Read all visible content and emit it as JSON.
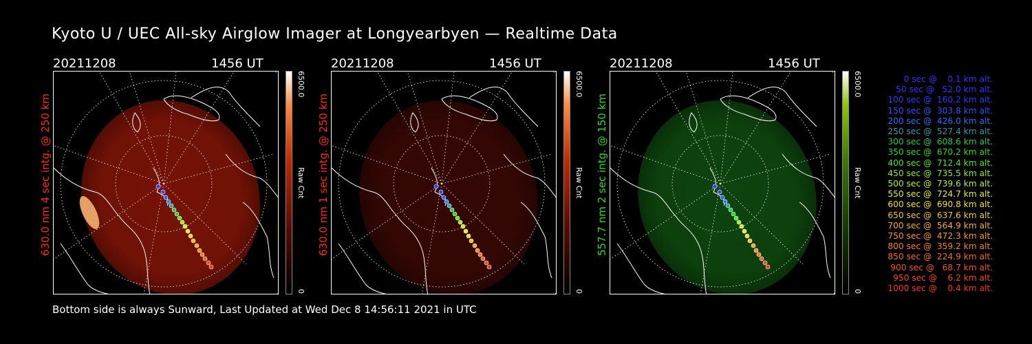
{
  "title": "Kyoto U / UEC All-sky Airglow Imager at Longyearbyen — Realtime Data",
  "footer": "Bottom side is always Sunward, Last Updated at Wed Dec  8 14:56:11 2021 in UTC",
  "panels": [
    {
      "date": "20211208",
      "time": "1456 UT",
      "side_label": "630.0 nm 4 sec intg. @ 250 km",
      "label_color": "#ff2a10",
      "cbar_max": "6500.0",
      "cbar_unit": "Raw Cnt",
      "cbar_min": "0",
      "glow_color": "#8a1608",
      "glow_opacity": 0.85
    },
    {
      "date": "20211208",
      "time": "1456 UT",
      "side_label": "630.0 nm 1 sec intg. @ 250 km",
      "label_color": "#ff2a10",
      "cbar_max": "6500.0",
      "cbar_unit": "Raw Cnt",
      "cbar_min": "0",
      "glow_color": "#3a0804",
      "glow_opacity": 0.9
    },
    {
      "date": "20211208",
      "time": "1456 UT",
      "side_label": "557.7 nm 2 sec intg. @ 150 km",
      "label_color": "#22dd22",
      "cbar_max": "6500.0",
      "cbar_unit": "Raw Cnt",
      "cbar_min": "0",
      "glow_color": "#0f4a0f",
      "glow_opacity": 0.9
    }
  ],
  "legend": [
    {
      "text": "   0 sec @    0.1 km alt.",
      "color": "#3030ff"
    },
    {
      "text": "  50 sec @   52.0 km alt.",
      "color": "#3030ff"
    },
    {
      "text": " 100 sec @  160.2 km alt.",
      "color": "#2a3cff"
    },
    {
      "text": " 150 sec @  303.8 km alt.",
      "color": "#2a52ff"
    },
    {
      "text": " 200 sec @  426.0 km alt.",
      "color": "#2a6cff"
    },
    {
      "text": " 250 sec @  527.4 km alt.",
      "color": "#2a9ca8"
    },
    {
      "text": " 300 sec @  608.6 km alt.",
      "color": "#22cc44"
    },
    {
      "text": " 350 sec @  670.2 km alt.",
      "color": "#22dd22"
    },
    {
      "text": " 400 sec @  712.4 km alt.",
      "color": "#44e822"
    },
    {
      "text": " 450 sec @  735.5 km alt.",
      "color": "#88ee22"
    },
    {
      "text": " 500 sec @  739.6 km alt.",
      "color": "#bbf022"
    },
    {
      "text": " 550 sec @  724.7 km alt.",
      "color": "#e8f020"
    },
    {
      "text": " 600 sec @  690.8 km alt.",
      "color": "#f8e020"
    },
    {
      "text": " 650 sec @  637.6 km alt.",
      "color": "#f8c820"
    },
    {
      "text": " 700 sec @  564.9 km alt.",
      "color": "#f8b020"
    },
    {
      "text": " 750 sec @  472.3 km alt.",
      "color": "#f89820"
    },
    {
      "text": " 800 sec @  359.2 km alt.",
      "color": "#f88020"
    },
    {
      "text": " 850 sec @  224.9 km alt.",
      "color": "#f86a20"
    },
    {
      "text": " 900 sec @   68.7 km alt.",
      "color": "#f85020"
    },
    {
      "text": " 950 sec @    6.2 km alt.",
      "color": "#f84020"
    },
    {
      "text": "1000 sec @    0.4 km alt.",
      "color": "#f83020"
    }
  ]
}
